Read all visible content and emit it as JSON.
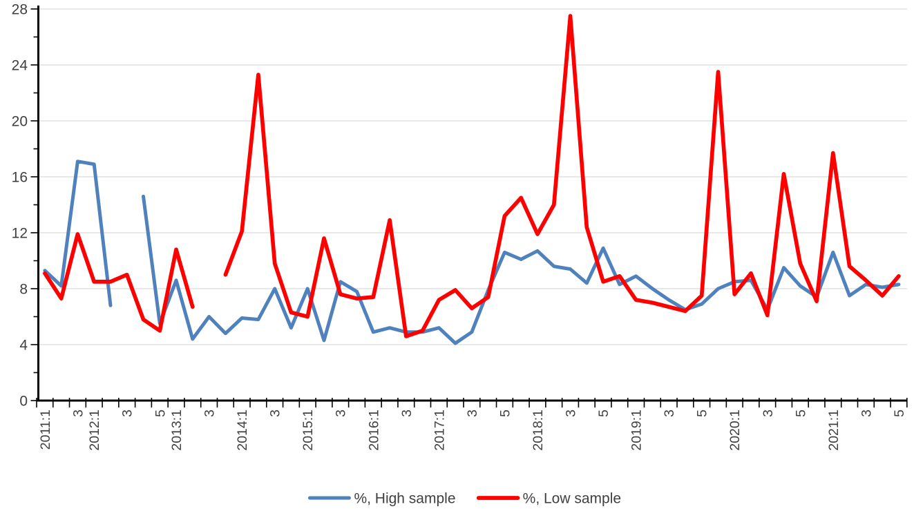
{
  "chart_data": {
    "type": "line",
    "title": "",
    "xlabel": "",
    "ylabel": "",
    "ylim": [
      0,
      28
    ],
    "y_ticks": [
      0,
      4,
      8,
      12,
      16,
      20,
      24,
      28
    ],
    "y_minor_tick_step": 2,
    "grid": "horizontal",
    "legend_position": "bottom-center",
    "categories": [
      "2011:1",
      "2011:2",
      "2011:3",
      "2012:1",
      "2012:2",
      "2012:3",
      "2012:4",
      "2012:5",
      "2013:1",
      "2013:2",
      "2013:3",
      "2013:4",
      "2014:1",
      "2014:2",
      "2014:3",
      "2014:4",
      "2015:1",
      "2015:2",
      "2015:3",
      "2015:4",
      "2016:1",
      "2016:2",
      "2016:3",
      "2016:4",
      "2017:1",
      "2017:2",
      "2017:3",
      "2017:4",
      "2017:5",
      "2017:6",
      "2018:1",
      "2018:2",
      "2018:3",
      "2018:4",
      "2018:5",
      "2018:6",
      "2019:1",
      "2019:2",
      "2019:3",
      "2019:4",
      "2019:5",
      "2019:6",
      "2020:1",
      "2020:2",
      "2020:3",
      "2020:4",
      "2020:5",
      "2020:6",
      "2021:1",
      "2021:2",
      "2021:3",
      "2021:4",
      "2021:5"
    ],
    "x_axis_labels_shown": [
      {
        "i": 0,
        "text": "2011:1"
      },
      {
        "i": 2,
        "text": "3"
      },
      {
        "i": 3,
        "text": "2012:1"
      },
      {
        "i": 5,
        "text": "3"
      },
      {
        "i": 7,
        "text": "5"
      },
      {
        "i": 8,
        "text": "2013:1"
      },
      {
        "i": 10,
        "text": "3"
      },
      {
        "i": 12,
        "text": "2014:1"
      },
      {
        "i": 14,
        "text": "3"
      },
      {
        "i": 16,
        "text": "2015:1"
      },
      {
        "i": 18,
        "text": "3"
      },
      {
        "i": 20,
        "text": "2016:1"
      },
      {
        "i": 22,
        "text": "3"
      },
      {
        "i": 24,
        "text": "2017:1"
      },
      {
        "i": 26,
        "text": "3"
      },
      {
        "i": 28,
        "text": "5"
      },
      {
        "i": 30,
        "text": "2018:1"
      },
      {
        "i": 32,
        "text": "3"
      },
      {
        "i": 34,
        "text": "5"
      },
      {
        "i": 36,
        "text": "2019:1"
      },
      {
        "i": 38,
        "text": "3"
      },
      {
        "i": 40,
        "text": "5"
      },
      {
        "i": 42,
        "text": "2020:1"
      },
      {
        "i": 44,
        "text": "3"
      },
      {
        "i": 46,
        "text": "5"
      },
      {
        "i": 48,
        "text": "2021:1"
      },
      {
        "i": 50,
        "text": "3"
      },
      {
        "i": 52,
        "text": "5"
      }
    ],
    "series": [
      {
        "name": "%, High sample",
        "color": "#4F81BD",
        "stroke_width": 5,
        "values": [
          9.3,
          8.2,
          17.1,
          16.9,
          6.8,
          null,
          14.6,
          5.5,
          8.6,
          4.4,
          6.0,
          4.8,
          5.9,
          5.8,
          8.0,
          5.2,
          8.0,
          4.3,
          8.5,
          7.8,
          4.9,
          5.2,
          4.9,
          4.9,
          5.2,
          4.1,
          4.9,
          7.9,
          10.6,
          10.1,
          10.7,
          9.6,
          9.4,
          8.4,
          10.9,
          8.3,
          8.9,
          8.0,
          7.2,
          6.5,
          6.9,
          8.0,
          8.5,
          8.6,
          6.5,
          9.5,
          8.2,
          7.4,
          10.6,
          7.5,
          8.3,
          8.1,
          8.3
        ]
      },
      {
        "name": "%, Low sample",
        "color": "#FF0000",
        "stroke_width": 5.7,
        "values": [
          9.1,
          7.3,
          11.9,
          8.5,
          8.5,
          9.0,
          5.8,
          5.0,
          10.8,
          6.7,
          null,
          9.0,
          12.1,
          23.3,
          9.8,
          6.3,
          6.0,
          11.6,
          7.6,
          7.3,
          7.4,
          12.9,
          4.6,
          5.0,
          7.2,
          7.9,
          6.6,
          7.4,
          13.2,
          14.5,
          11.9,
          14.0,
          27.5,
          12.4,
          8.5,
          8.9,
          7.2,
          7.0,
          6.7,
          6.4,
          7.5,
          23.5,
          7.6,
          9.1,
          6.1,
          16.2,
          9.8,
          7.1,
          17.7,
          9.6,
          8.6,
          7.5,
          8.9
        ]
      }
    ],
    "colors": {
      "grid": "#D9D9D9",
      "axis": "#000000",
      "tick_label": "#404040",
      "background": "#FFFFFF"
    }
  }
}
